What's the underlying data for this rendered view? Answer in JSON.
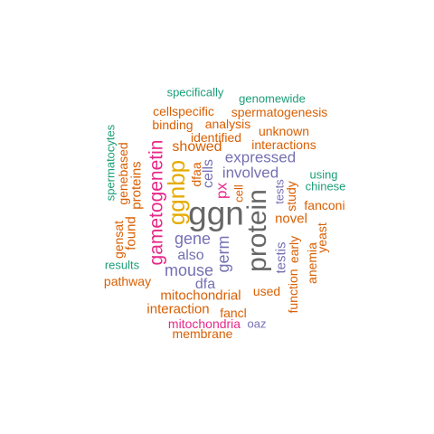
{
  "palette": {
    "teal": "#1b9e77",
    "orange": "#d95f02",
    "purple": "#7570b3",
    "pink": "#e7298a",
    "gold": "#e6ab02",
    "gray": "#666666"
  },
  "words": [
    {
      "text": "specifically",
      "color": "teal"
    },
    {
      "text": "genomewide",
      "color": "teal"
    },
    {
      "text": "cellspecific",
      "color": "orange"
    },
    {
      "text": "spermatogenesis",
      "color": "orange"
    },
    {
      "text": "binding",
      "color": "orange"
    },
    {
      "text": "analysis",
      "color": "orange"
    },
    {
      "text": "unknown",
      "color": "orange"
    },
    {
      "text": "identified",
      "color": "orange"
    },
    {
      "text": "showed",
      "color": "orange"
    },
    {
      "text": "interactions",
      "color": "orange"
    },
    {
      "text": "expressed",
      "color": "purple"
    },
    {
      "text": "involved",
      "color": "purple"
    },
    {
      "text": "using",
      "color": "teal"
    },
    {
      "text": "chinese",
      "color": "teal"
    },
    {
      "text": "spermatocytes",
      "color": "teal"
    },
    {
      "text": "genebased",
      "color": "orange"
    },
    {
      "text": "proteins",
      "color": "orange"
    },
    {
      "text": "gametogenetin",
      "color": "pink"
    },
    {
      "text": "ggnbp",
      "color": "gold"
    },
    {
      "text": "dfaa",
      "color": "orange"
    },
    {
      "text": "px",
      "color": "pink"
    },
    {
      "text": "cells",
      "color": "purple"
    },
    {
      "text": "cell",
      "color": "orange"
    },
    {
      "text": "ggn",
      "color": "gray"
    },
    {
      "text": "protein",
      "color": "gray"
    },
    {
      "text": "tests",
      "color": "purple"
    },
    {
      "text": "study",
      "color": "orange"
    },
    {
      "text": "fanconi",
      "color": "orange"
    },
    {
      "text": "novel",
      "color": "orange"
    },
    {
      "text": "gensat",
      "color": "orange"
    },
    {
      "text": "found",
      "color": "orange"
    },
    {
      "text": "gene",
      "color": "purple"
    },
    {
      "text": "germ",
      "color": "purple"
    },
    {
      "text": "also",
      "color": "purple"
    },
    {
      "text": "testis",
      "color": "purple"
    },
    {
      "text": "early",
      "color": "orange"
    },
    {
      "text": "anemia",
      "color": "orange"
    },
    {
      "text": "yeast",
      "color": "orange"
    },
    {
      "text": "results",
      "color": "teal"
    },
    {
      "text": "mouse",
      "color": "purple"
    },
    {
      "text": "pathway",
      "color": "orange"
    },
    {
      "text": "dfa",
      "color": "purple"
    },
    {
      "text": "used",
      "color": "orange"
    },
    {
      "text": "function",
      "color": "orange"
    },
    {
      "text": "mitochondrial",
      "color": "orange"
    },
    {
      "text": "interaction",
      "color": "orange"
    },
    {
      "text": "fancl",
      "color": "orange"
    },
    {
      "text": "mitochondria",
      "color": "pink"
    },
    {
      "text": "oaz",
      "color": "purple"
    },
    {
      "text": "membrane",
      "color": "orange"
    }
  ]
}
